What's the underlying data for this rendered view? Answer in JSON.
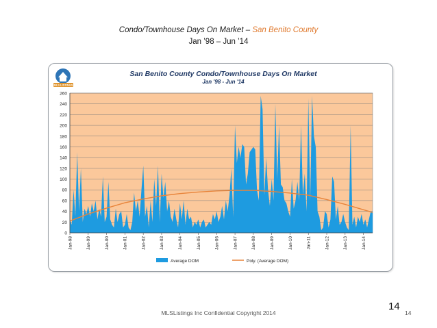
{
  "slide": {
    "title_main": "Condo/Townhouse Days On Market – ",
    "title_county": "San Benito County",
    "subtitle": "Jan ’98 – Jun ’14"
  },
  "logo": {
    "label": "MLS LISTINGS"
  },
  "footer": {
    "copyright": "MLSListings Inc Confidential Copyright 2014",
    "page_big": "14",
    "page_small": "14"
  },
  "colors": {
    "plot_bg": "#fbc89b",
    "area": "#1e9be0",
    "trend": "#e8843a",
    "grid": "#7a7a7a",
    "title": "#1f3864"
  },
  "chart_data": {
    "type": "area",
    "title": "San Benito County Condo/Townhouse Days On Market",
    "subtitle": "Jan '98 - Jun '14",
    "xlabel": "",
    "ylabel": "",
    "ylim": [
      0,
      260
    ],
    "yticks": [
      0,
      20,
      40,
      60,
      80,
      100,
      120,
      140,
      160,
      180,
      200,
      220,
      240,
      260
    ],
    "grid": true,
    "legend_position": "bottom",
    "x_range_years": [
      1998.0,
      2014.5
    ],
    "x_tick_labels": [
      "Jan-98",
      "Jan-99",
      "Jan-00",
      "Jan-01",
      "Jan-02",
      "Jan-03",
      "Jan-04",
      "Jan-05",
      "Jan-06",
      "Jan-07",
      "Jan-08",
      "Jan-09",
      "Jan-10",
      "Jan-11",
      "Jan-12",
      "Jan-13",
      "Jan-14"
    ],
    "series": [
      {
        "name": "Average DOM",
        "kind": "area",
        "points": [
          [
            1998.0,
            25
          ],
          [
            1998.1,
            15
          ],
          [
            1998.2,
            80
          ],
          [
            1998.3,
            30
          ],
          [
            1998.4,
            150
          ],
          [
            1998.5,
            40
          ],
          [
            1998.6,
            120
          ],
          [
            1998.7,
            20
          ],
          [
            1998.8,
            45
          ],
          [
            1998.9,
            35
          ],
          [
            1999.0,
            50
          ],
          [
            1999.1,
            30
          ],
          [
            1999.2,
            55
          ],
          [
            1999.3,
            40
          ],
          [
            1999.4,
            60
          ],
          [
            1999.5,
            25
          ],
          [
            1999.6,
            45
          ],
          [
            1999.7,
            30
          ],
          [
            1999.8,
            105
          ],
          [
            1999.9,
            20
          ],
          [
            2000.0,
            30
          ],
          [
            2000.1,
            95
          ],
          [
            2000.2,
            25
          ],
          [
            2000.3,
            15
          ],
          [
            2000.4,
            10
          ],
          [
            2000.5,
            45
          ],
          [
            2000.6,
            20
          ],
          [
            2000.7,
            35
          ],
          [
            2000.8,
            40
          ],
          [
            2000.9,
            10
          ],
          [
            2001.0,
            15
          ],
          [
            2001.1,
            35
          ],
          [
            2001.2,
            10
          ],
          [
            2001.3,
            5
          ],
          [
            2001.4,
            20
          ],
          [
            2001.5,
            75
          ],
          [
            2001.6,
            40
          ],
          [
            2001.7,
            60
          ],
          [
            2001.8,
            30
          ],
          [
            2001.9,
            80
          ],
          [
            2002.0,
            125
          ],
          [
            2002.1,
            30
          ],
          [
            2002.2,
            50
          ],
          [
            2002.3,
            10
          ],
          [
            2002.4,
            60
          ],
          [
            2002.5,
            20
          ],
          [
            2002.6,
            100
          ],
          [
            2002.7,
            50
          ],
          [
            2002.8,
            125
          ],
          [
            2002.9,
            20
          ],
          [
            2003.0,
            110
          ],
          [
            2003.1,
            65
          ],
          [
            2003.2,
            95
          ],
          [
            2003.3,
            40
          ],
          [
            2003.4,
            60
          ],
          [
            2003.5,
            30
          ],
          [
            2003.6,
            20
          ],
          [
            2003.7,
            45
          ],
          [
            2003.8,
            25
          ],
          [
            2003.9,
            10
          ],
          [
            2004.0,
            55
          ],
          [
            2004.1,
            25
          ],
          [
            2004.2,
            60
          ],
          [
            2004.3,
            15
          ],
          [
            2004.4,
            45
          ],
          [
            2004.5,
            25
          ],
          [
            2004.6,
            30
          ],
          [
            2004.7,
            10
          ],
          [
            2004.8,
            20
          ],
          [
            2004.9,
            15
          ],
          [
            2005.0,
            25
          ],
          [
            2005.1,
            10
          ],
          [
            2005.2,
            20
          ],
          [
            2005.3,
            25
          ],
          [
            2005.4,
            10
          ],
          [
            2005.5,
            15
          ],
          [
            2005.6,
            20
          ],
          [
            2005.7,
            15
          ],
          [
            2005.8,
            35
          ],
          [
            2005.9,
            25
          ],
          [
            2006.0,
            40
          ],
          [
            2006.1,
            20
          ],
          [
            2006.2,
            30
          ],
          [
            2006.3,
            50
          ],
          [
            2006.4,
            25
          ],
          [
            2006.5,
            60
          ],
          [
            2006.6,
            40
          ],
          [
            2006.7,
            70
          ],
          [
            2006.8,
            120
          ],
          [
            2006.9,
            30
          ],
          [
            2007.0,
            200
          ],
          [
            2007.1,
            130
          ],
          [
            2007.2,
            160
          ],
          [
            2007.3,
            140
          ],
          [
            2007.4,
            165
          ],
          [
            2007.5,
            160
          ],
          [
            2007.6,
            90
          ],
          [
            2007.7,
            110
          ],
          [
            2007.8,
            150
          ],
          [
            2007.9,
            155
          ],
          [
            2008.0,
            160
          ],
          [
            2008.1,
            155
          ],
          [
            2008.2,
            80
          ],
          [
            2008.3,
            60
          ],
          [
            2008.4,
            255
          ],
          [
            2008.5,
            230
          ],
          [
            2008.6,
            70
          ],
          [
            2008.7,
            140
          ],
          [
            2008.8,
            80
          ],
          [
            2008.9,
            50
          ],
          [
            2009.0,
            100
          ],
          [
            2009.1,
            60
          ],
          [
            2009.2,
            240
          ],
          [
            2009.3,
            100
          ],
          [
            2009.4,
            200
          ],
          [
            2009.5,
            90
          ],
          [
            2009.6,
            85
          ],
          [
            2009.7,
            60
          ],
          [
            2009.8,
            55
          ],
          [
            2009.9,
            40
          ],
          [
            2010.0,
            30
          ],
          [
            2010.1,
            100
          ],
          [
            2010.2,
            45
          ],
          [
            2010.3,
            60
          ],
          [
            2010.4,
            95
          ],
          [
            2010.5,
            60
          ],
          [
            2010.6,
            200
          ],
          [
            2010.7,
            70
          ],
          [
            2010.8,
            110
          ],
          [
            2010.9,
            40
          ],
          [
            2011.0,
            250
          ],
          [
            2011.1,
            60
          ],
          [
            2011.2,
            255
          ],
          [
            2011.3,
            180
          ],
          [
            2011.4,
            160
          ],
          [
            2011.5,
            40
          ],
          [
            2011.6,
            30
          ],
          [
            2011.7,
            5
          ],
          [
            2011.8,
            10
          ],
          [
            2011.9,
            40
          ],
          [
            2012.0,
            35
          ],
          [
            2012.1,
            10
          ],
          [
            2012.2,
            25
          ],
          [
            2012.3,
            105
          ],
          [
            2012.4,
            95
          ],
          [
            2012.5,
            25
          ],
          [
            2012.6,
            50
          ],
          [
            2012.7,
            15
          ],
          [
            2012.8,
            20
          ],
          [
            2012.9,
            35
          ],
          [
            2013.0,
            20
          ],
          [
            2013.1,
            10
          ],
          [
            2013.2,
            5
          ],
          [
            2013.3,
            200
          ],
          [
            2013.4,
            15
          ],
          [
            2013.5,
            30
          ],
          [
            2013.6,
            10
          ],
          [
            2013.7,
            30
          ],
          [
            2013.8,
            20
          ],
          [
            2013.9,
            35
          ],
          [
            2014.0,
            15
          ],
          [
            2014.1,
            25
          ],
          [
            2014.2,
            10
          ],
          [
            2014.3,
            25
          ],
          [
            2014.4,
            40
          ],
          [
            2014.5,
            40
          ]
        ]
      },
      {
        "name": "Poly. (Average DOM)",
        "kind": "trend",
        "points": [
          [
            1998.0,
            22
          ],
          [
            1999.0,
            35
          ],
          [
            2000.0,
            46
          ],
          [
            2001.0,
            56
          ],
          [
            2002.0,
            63
          ],
          [
            2003.0,
            69
          ],
          [
            2004.0,
            73
          ],
          [
            2005.0,
            76
          ],
          [
            2006.0,
            78
          ],
          [
            2007.0,
            79
          ],
          [
            2008.0,
            79
          ],
          [
            2009.0,
            77
          ],
          [
            2010.0,
            74
          ],
          [
            2011.0,
            70
          ],
          [
            2012.0,
            62
          ],
          [
            2013.0,
            53
          ],
          [
            2014.0,
            43
          ],
          [
            2014.5,
            38
          ]
        ]
      }
    ]
  }
}
